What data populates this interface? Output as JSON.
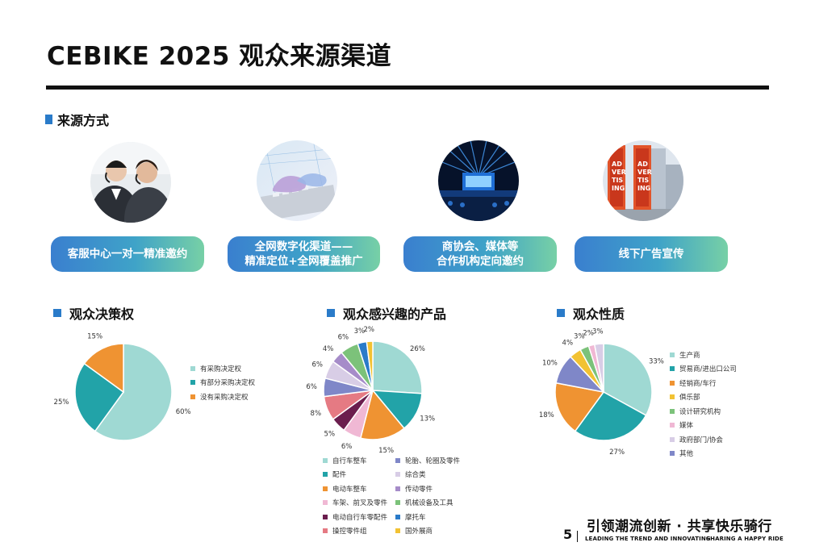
{
  "page_title": "CEBIKE 2025 观众来源渠道",
  "sources": {
    "heading": "来源方式",
    "channels": [
      {
        "lines": [
          "客服中心一对一精准邀约"
        ]
      },
      {
        "lines": [
          "全网数字化渠道——",
          "精准定位+全网覆盖推广"
        ]
      },
      {
        "lines": [
          "商协会、媒体等",
          "合作机构定向邀约"
        ]
      },
      {
        "lines": [
          "线下广告宣传"
        ]
      }
    ],
    "billboard_text": [
      "AD",
      "VER",
      "TIS",
      "ING"
    ]
  },
  "chart_data": [
    {
      "type": "pie",
      "title": "观众决策权",
      "slices": [
        {
          "label": "有采购决定权",
          "value": 60,
          "value_label": "60%",
          "color": "#9fd9d3"
        },
        {
          "label": "有部分采购决定权",
          "value": 25,
          "value_label": "25%",
          "color": "#22a3a8"
        },
        {
          "label": "没有采购决定权",
          "value": 15,
          "value_label": "15%",
          "color": "#ef9332"
        }
      ]
    },
    {
      "type": "pie",
      "title": "观众感兴趣的产品",
      "slices": [
        {
          "label": "自行车整车",
          "value": 26,
          "value_label": "26%",
          "color": "#9fd9d3"
        },
        {
          "label": "配件",
          "value": 13,
          "value_label": "13%",
          "color": "#22a3a8"
        },
        {
          "label": "电动车整车",
          "value": 15,
          "value_label": "15%",
          "color": "#ef9332"
        },
        {
          "label": "车架、前叉及零件",
          "value": 6,
          "value_label": "6%",
          "color": "#f0b8d4"
        },
        {
          "label": "电动自行车零配件",
          "value": 5,
          "value_label": "5%",
          "color": "#6b1e4e"
        },
        {
          "label": "操控零件组",
          "value": 8,
          "value_label": "8%",
          "color": "#e57a83"
        },
        {
          "label": "轮胎、轮圈及零件",
          "value": 6,
          "value_label": "6%",
          "color": "#7f87c8"
        },
        {
          "label": "综合类",
          "value": 6,
          "value_label": "6%",
          "color": "#d8cde6"
        },
        {
          "label": "传动零件",
          "value": 4,
          "value_label": "4%",
          "color": "#a68cc9"
        },
        {
          "label": "机械设备及工具",
          "value": 6,
          "value_label": "6%",
          "color": "#7cc27a"
        },
        {
          "label": "摩托车",
          "value": 3,
          "value_label": "3%",
          "color": "#2a7bc9"
        },
        {
          "label": "国外展商",
          "value": 2,
          "value_label": "2%",
          "color": "#f2c233"
        }
      ]
    },
    {
      "type": "pie",
      "title": "观众性质",
      "slices": [
        {
          "label": "生产商",
          "value": 33,
          "value_label": "33%",
          "color": "#9fd9d3"
        },
        {
          "label": "贸易商/进出口公司",
          "value": 27,
          "value_label": "27%",
          "color": "#22a3a8"
        },
        {
          "label": "经销商/车行",
          "value": 18,
          "value_label": "18%",
          "color": "#ef9332"
        },
        {
          "label": "其他",
          "value": 10,
          "value_label": "10%",
          "color": "#7f87c8"
        },
        {
          "label": "俱乐部",
          "value": 4,
          "value_label": "4%",
          "color": "#f2c233"
        },
        {
          "label": "设计研究机构",
          "value": 3,
          "value_label": "3%",
          "color": "#7cc27a"
        },
        {
          "label": "媒体",
          "value": 2,
          "value_label": "2%",
          "color": "#f0b8d4"
        },
        {
          "label": "政府部门/协会",
          "value": 3,
          "value_label": "3%",
          "color": "#d8cde6"
        }
      ]
    }
  ],
  "legends": {
    "decision": [
      "有采购决定权",
      "有部分采购决定权",
      "没有采购决定权"
    ],
    "products": [
      "自行车整车",
      "轮胎、轮圈及零件",
      "配件",
      "综合类",
      "电动车整车",
      "传动零件",
      "车架、前叉及零件",
      "机械设备及工具",
      "电动自行车零配件",
      "摩托车",
      "操控零件组",
      "国外展商"
    ],
    "nature": [
      "生产商",
      "贸易商/进出口公司",
      "经销商/车行",
      "俱乐部",
      "设计研究机构",
      "媒体",
      "政府部门/协会",
      "其他"
    ]
  },
  "footer": {
    "slogan": "引领潮流创新 · 共享快乐骑行",
    "page_number": "5",
    "sub_left": "LEADING THE TREND AND INNOVATING",
    "sub_right": "SHARING A HAPPY RIDE"
  }
}
